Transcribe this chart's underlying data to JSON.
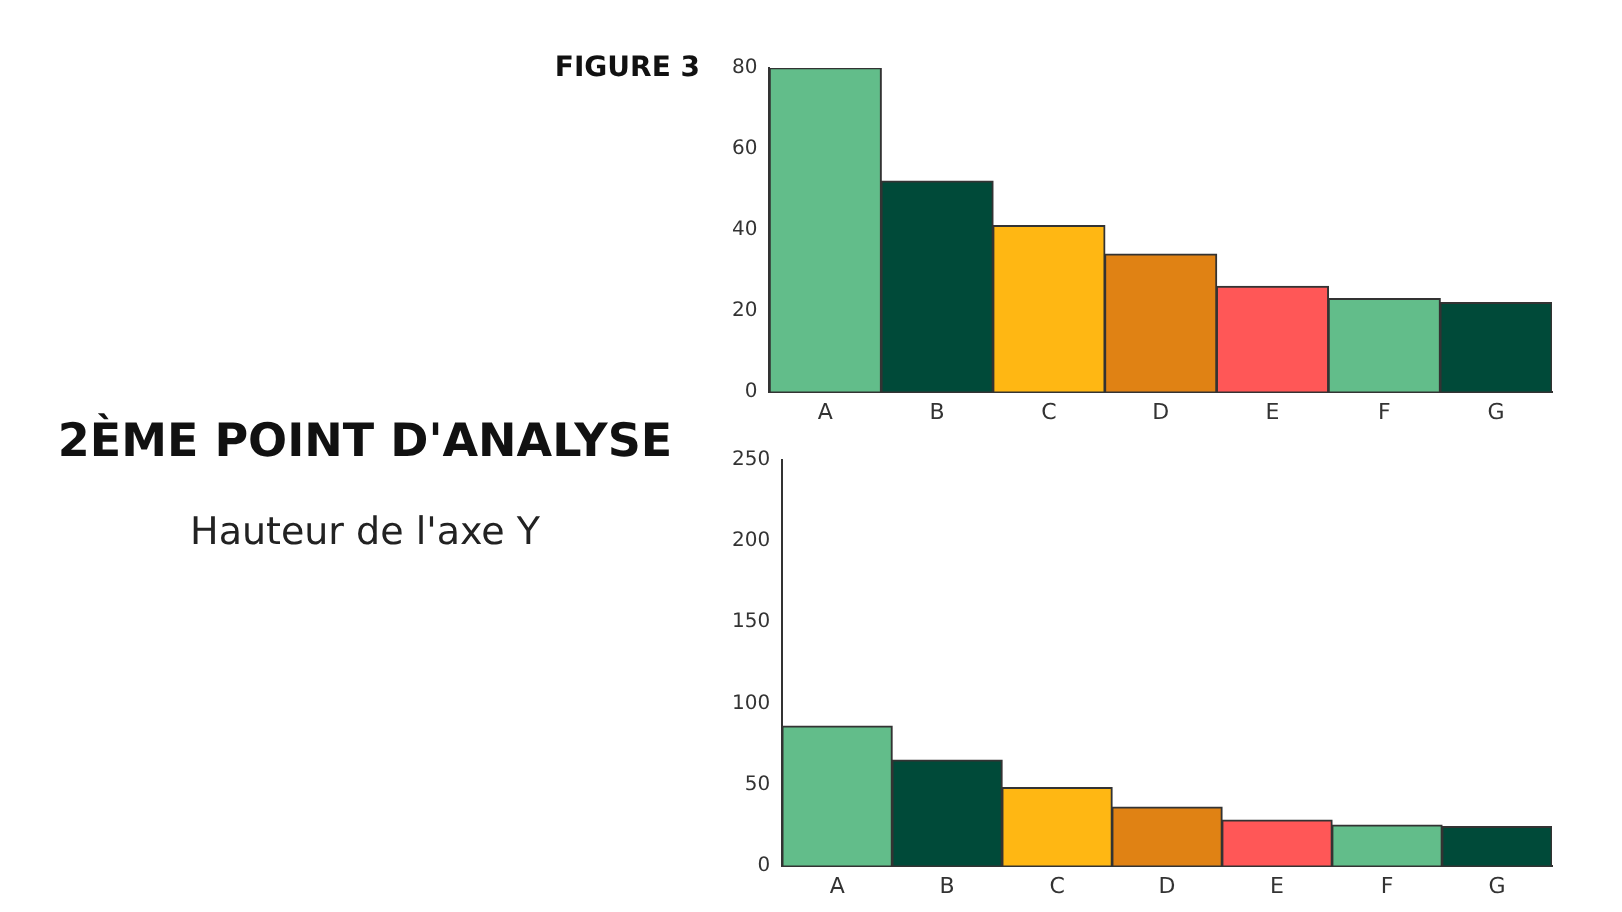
{
  "chart_data": [
    {
      "type": "bar",
      "title": "FIGURE 3",
      "categories": [
        "A",
        "B",
        "C",
        "D",
        "E",
        "F",
        "G"
      ],
      "values": [
        80,
        52,
        41,
        34,
        26,
        23,
        22
      ],
      "colors": [
        "#62bd8a",
        "#004a39",
        "#ffb713",
        "#e08214",
        "#ff5757",
        "#62bd8a",
        "#004a39"
      ],
      "ylim": [
        0,
        80
      ],
      "yticks": [
        0,
        20,
        40,
        60,
        80
      ],
      "grid": false,
      "legend": false
    },
    {
      "type": "bar",
      "title": "2ÈME POINT D'ANALYSE",
      "subtitle": "Hauteur de l'axe Y",
      "categories": [
        "A",
        "B",
        "C",
        "D",
        "E",
        "F",
        "G"
      ],
      "values": [
        86,
        65,
        48,
        36,
        28,
        25,
        24
      ],
      "colors": [
        "#62bd8a",
        "#004a39",
        "#ffb713",
        "#e08214",
        "#ff5757",
        "#62bd8a",
        "#004a39"
      ],
      "ylim": [
        0,
        250
      ],
      "yticks": [
        0,
        50,
        100,
        150,
        200,
        250
      ],
      "grid": false,
      "legend": false
    }
  ]
}
